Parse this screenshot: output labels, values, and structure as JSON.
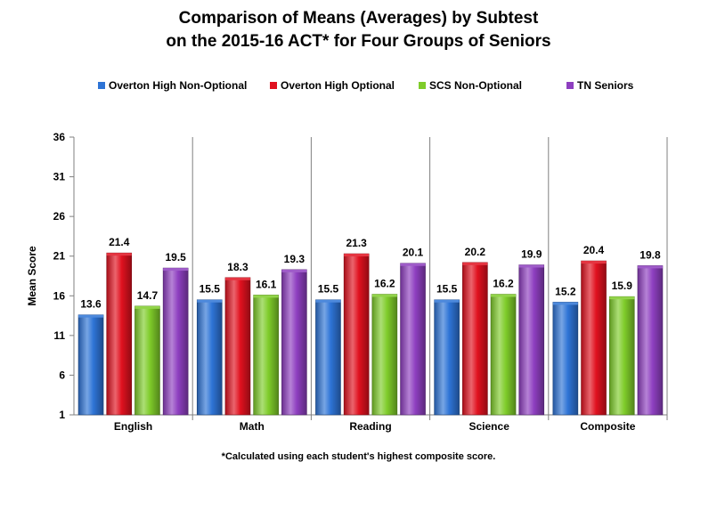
{
  "chart_data": {
    "type": "bar",
    "title_line1": "Comparison of Means (Averages) by Subtest",
    "title_line2": "on the 2015-16 ACT* for Four Groups of Seniors",
    "ylabel": "Mean Score",
    "xlabel": "",
    "ylim": [
      1,
      36
    ],
    "yticks": [
      1,
      6,
      11,
      16,
      21,
      26,
      31,
      36
    ],
    "categories": [
      "English",
      "Math",
      "Reading",
      "Science",
      "Composite"
    ],
    "series": [
      {
        "name": "Overton High Non-Optional",
        "color": "#2e74d6",
        "values": [
          13.6,
          15.5,
          15.5,
          15.5,
          15.2
        ]
      },
      {
        "name": "Overton High Optional",
        "color": "#e0111f",
        "values": [
          21.4,
          18.3,
          21.3,
          20.2,
          20.4
        ]
      },
      {
        "name": "SCS Non-Optional",
        "color": "#7fcc2a",
        "values": [
          14.7,
          16.1,
          16.2,
          16.2,
          15.9
        ]
      },
      {
        "name": "TN Seniors",
        "color": "#8e3fc0",
        "values": [
          19.5,
          19.3,
          20.1,
          19.9,
          19.8
        ]
      }
    ],
    "legend_position": "top",
    "grid": "vertical category separators",
    "footnote": "*Calculated using each student's highest composite score."
  }
}
